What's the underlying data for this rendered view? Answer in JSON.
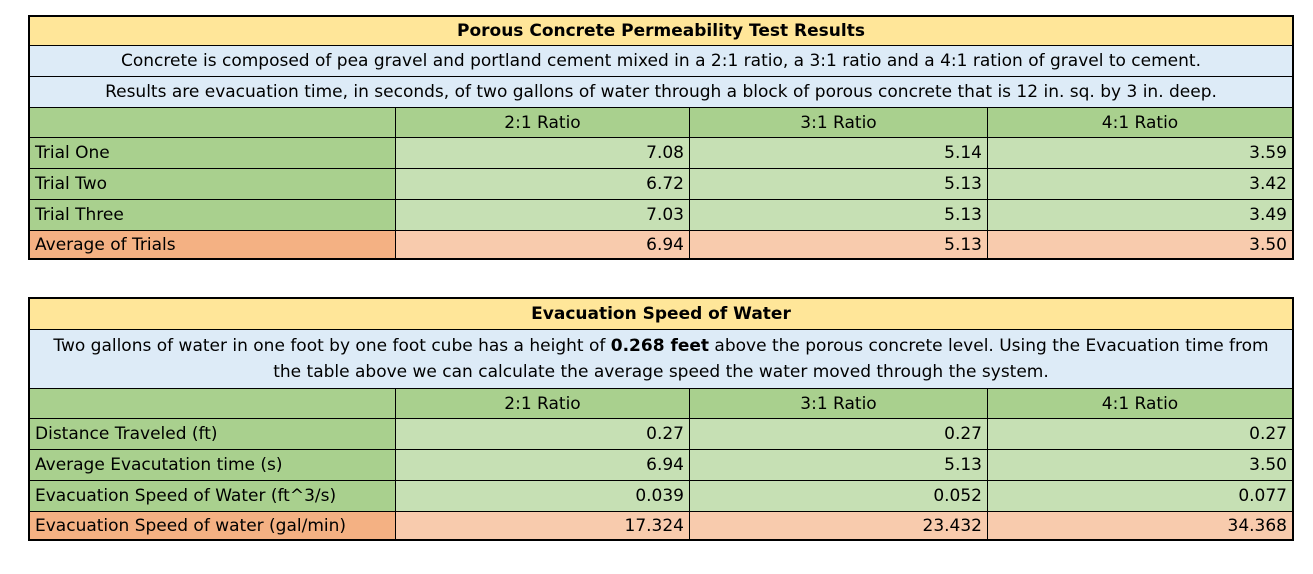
{
  "table1": {
    "title": "Porous Concrete Permeability Test Results",
    "note1": "Concrete is composed of pea gravel and portland cement mixed in a 2:1 ratio, a 3:1 ratio and a 4:1 ration of gravel to cement.",
    "note2": "Results are evacuation time, in seconds, of two gallons of water through a block of porous concrete that is 12 in. sq. by 3 in. deep.",
    "headers": [
      "",
      "2:1 Ratio",
      "3:1 Ratio",
      "4:1 Ratio"
    ],
    "rows": [
      {
        "label": "Trial One",
        "values": [
          "7.08",
          "5.14",
          "3.59"
        ]
      },
      {
        "label": "Trial Two",
        "values": [
          "6.72",
          "5.13",
          "3.42"
        ]
      },
      {
        "label": "Trial Three",
        "values": [
          "7.03",
          "5.13",
          "3.49"
        ]
      },
      {
        "label": "Average of Trials",
        "values": [
          "6.94",
          "5.13",
          "3.50"
        ]
      }
    ]
  },
  "table2": {
    "title": "Evacuation Speed of Water",
    "note_pre": "Two gallons of water in one foot by one foot cube has a height of ",
    "note_bold": "0.268 feet",
    "note_post": " above the porous concrete level. Using the Evacuation time from the table above we can calculate the average speed the water moved through the system.",
    "headers": [
      "",
      "2:1 Ratio",
      "3:1 Ratio",
      "4:1 Ratio"
    ],
    "rows": [
      {
        "label": "Distance Traveled (ft)",
        "values": [
          "0.27",
          "0.27",
          "0.27"
        ]
      },
      {
        "label": "Average Evacutation time (s)",
        "values": [
          "6.94",
          "5.13",
          "3.50"
        ]
      },
      {
        "label": "Evacuation Speed of Water (ft^3/s)",
        "values": [
          "0.039",
          "0.052",
          "0.077"
        ]
      },
      {
        "label": "Evacuation Speed of water (gal/min)",
        "values": [
          "17.324",
          "23.432",
          "34.368"
        ]
      }
    ]
  }
}
